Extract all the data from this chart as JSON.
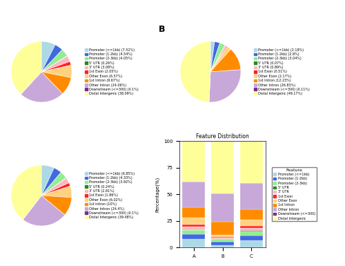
{
  "categories": [
    "Promoter (<=1kb)",
    "Promoter (1-2kb)",
    "Promoter (2-3kb)",
    "5' UTR",
    "3' UTR",
    "1st Exon",
    "Other Exon",
    "1st Intron",
    "Other Intron",
    "Downstream (<=300)",
    "Distal Intergenic"
  ],
  "colors": [
    "#add8e6",
    "#4169e1",
    "#90ee90",
    "#228b22",
    "#ffb6c1",
    "#ff2222",
    "#ffd27f",
    "#ff8c00",
    "#c8a8d8",
    "#7b2d8b",
    "#ffff99"
  ],
  "A_values": [
    7.52,
    4.54,
    4.05,
    0.26,
    3.08,
    2.05,
    6.57,
    9.67,
    24.06,
    0.1,
    38.09
  ],
  "A_labels": [
    "Promoter (<=1kb) (7.52%)",
    "Promoter (1-2kb) (4.54%)",
    "Promoter (2-3kb) (4.05%)",
    "5' UTR (0.26%)",
    "3' UTR (3.08%)",
    "1st Exon (2.05%)",
    "Other Exon (6.57%)",
    "1st Intron (9.67%)",
    "Other Intron (24.06%)",
    "Downstream (<=300) (0.1%)",
    "Distal Intergenic (38.09%)"
  ],
  "B_values": [
    2.18,
    2.8,
    3.04,
    0.07,
    0.89,
    0.51,
    2.17,
    12.23,
    26.83,
    0.11,
    49.17
  ],
  "B_labels": [
    "Promoter (<=1kb) (2.18%)",
    "Promoter (1-2kb) (2.8%)",
    "Promoter (2-3kb) (3.04%)",
    "5' UTR (0.07%)",
    "3' UTR (0.89%)",
    "1st Exon (0.51%)",
    "Other Exon (2.17%)",
    "1st Intron (12.23%)",
    "Other Intron (26.83%)",
    "Downstream (<=300) (0.11%)",
    "Distal Intergenic (49.17%)"
  ],
  "C_values": [
    6.85,
    4.33,
    3.92,
    0.24,
    2.81,
    1.86,
    6.02,
    10.0,
    24.4,
    0.1,
    39.48
  ],
  "C_labels": [
    "Promoter (<=1kb) (6.85%)",
    "Promoter (1-2kb) (4.33%)",
    "Promoter (2-3kb) (3.92%)",
    "5' UTR (0.24%)",
    "3' UTR (2.81%)",
    "1st Exon (1.86%)",
    "Other Exon (6.02%)",
    "1st Intron (10%)",
    "Other Intron (24.4%)",
    "Downstream (<=300) (0.1%)",
    "Distal Intergenic (39.48%)"
  ],
  "feature_title": "Feature Distribution",
  "xlabel": "Percentage(%)",
  "legend_title": "Feature",
  "legend_labels": [
    "Promoter (<=1kb)",
    "Promoter (1-2kb)",
    "Promoter (2-3kb)",
    "5' UTR",
    "3' UTR",
    "1st Exon",
    "Other Exon",
    "1st Intron",
    "Other Intron",
    "Downstream (<=300)",
    "Distal Intergenic"
  ]
}
